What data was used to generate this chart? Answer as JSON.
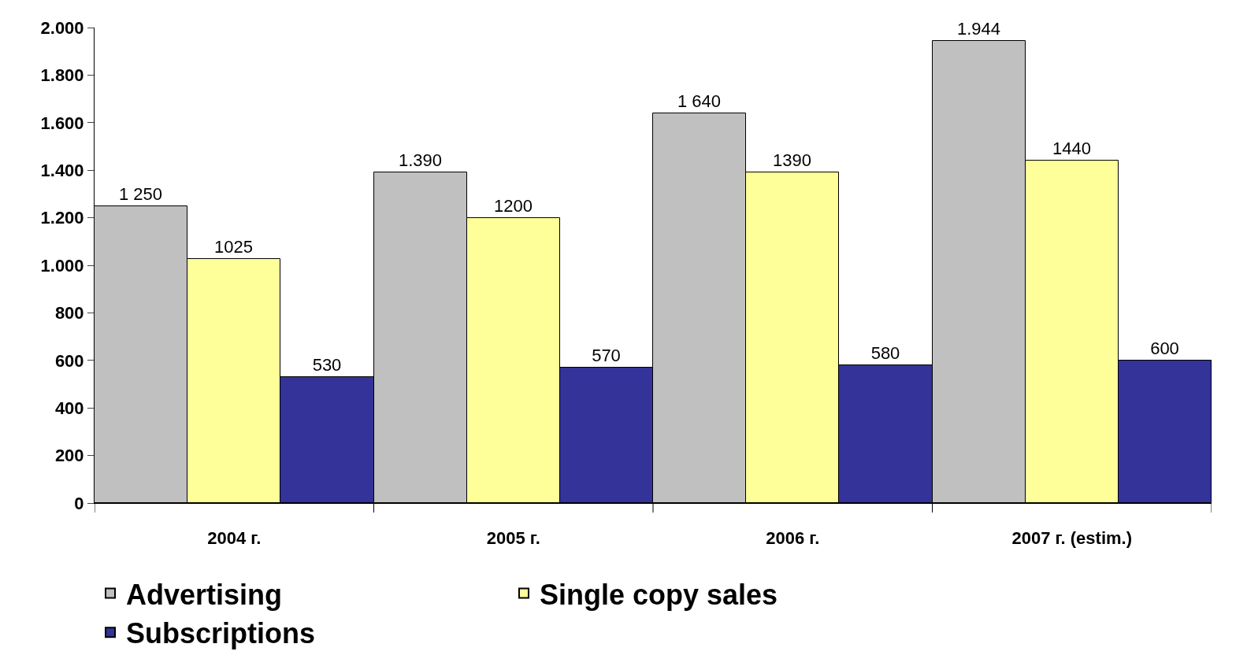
{
  "chart_data": {
    "type": "bar",
    "categories": [
      "2004 г.",
      "2005 г.",
      "2006 г.",
      "2007 г. (estim.)"
    ],
    "series": [
      {
        "name": "Advertising",
        "color": "#c0c0c0",
        "values": [
          1250,
          1390,
          1640,
          1944
        ],
        "value_labels": [
          "1 250",
          "1.390",
          "1 640",
          "1.944"
        ]
      },
      {
        "name": "Single copy sales",
        "color": "#ffff99",
        "values": [
          1025,
          1200,
          1390,
          1440
        ],
        "value_labels": [
          "1025",
          "1200",
          "1390",
          "1440"
        ]
      },
      {
        "name": "Subscriptions",
        "color": "#333399",
        "values": [
          530,
          570,
          580,
          600
        ],
        "value_labels": [
          "530",
          "570",
          "580",
          "600"
        ]
      }
    ],
    "ylim": [
      0,
      2000
    ],
    "yticks": [
      {
        "value": 0,
        "label": "0"
      },
      {
        "value": 200,
        "label": "200"
      },
      {
        "value": 400,
        "label": "400"
      },
      {
        "value": 600,
        "label": "600"
      },
      {
        "value": 800,
        "label": "800"
      },
      {
        "value": 1000,
        "label": "1.000"
      },
      {
        "value": 1200,
        "label": "1.200"
      },
      {
        "value": 1400,
        "label": "1.400"
      },
      {
        "value": 1600,
        "label": "1.600"
      },
      {
        "value": 1800,
        "label": "1.800"
      },
      {
        "value": 2000,
        "label": "2.000"
      }
    ],
    "grid": false,
    "legend": "bottom"
  }
}
